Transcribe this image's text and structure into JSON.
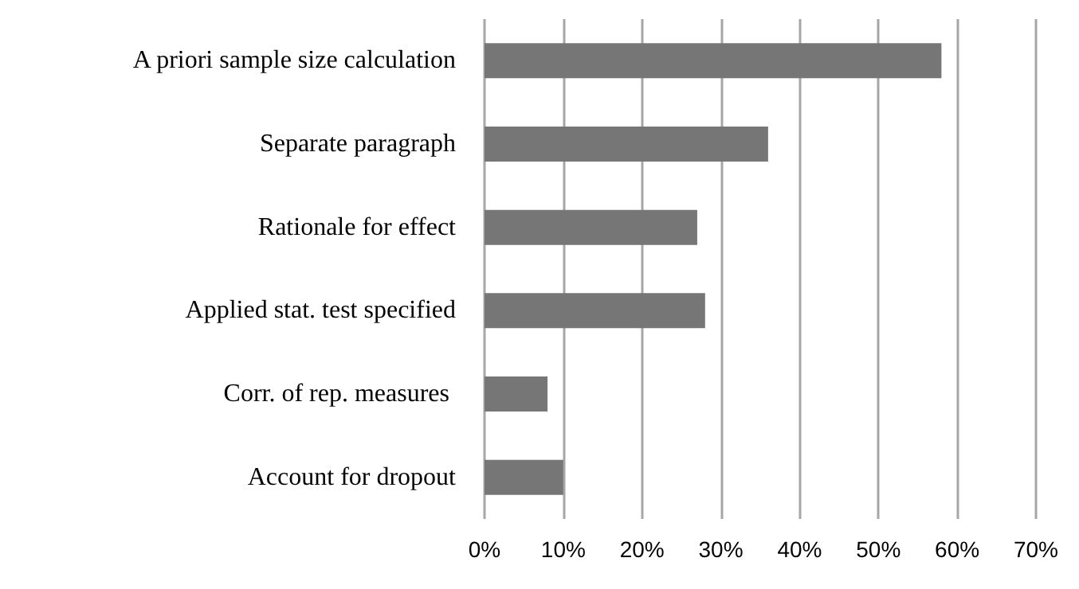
{
  "chart_data": {
    "type": "bar",
    "orientation": "horizontal",
    "categories": [
      "A priori sample size calculation",
      "Separate paragraph",
      "Rationale for effect",
      "Applied stat. test specified",
      "Corr. of rep. measures ",
      "Account for dropout"
    ],
    "values": [
      58,
      36,
      27,
      28,
      8,
      10
    ],
    "color": "#767676",
    "xlim": [
      0,
      70
    ],
    "xticks": [
      {
        "value": 0,
        "label": "0%"
      },
      {
        "value": 10,
        "label": "10%"
      },
      {
        "value": 20,
        "label": "20%"
      },
      {
        "value": 30,
        "label": "30%"
      },
      {
        "value": 40,
        "label": "40%"
      },
      {
        "value": 50,
        "label": "50%"
      },
      {
        "value": 60,
        "label": "60%"
      },
      {
        "value": 70,
        "label": "70%"
      }
    ],
    "grid": "x"
  }
}
